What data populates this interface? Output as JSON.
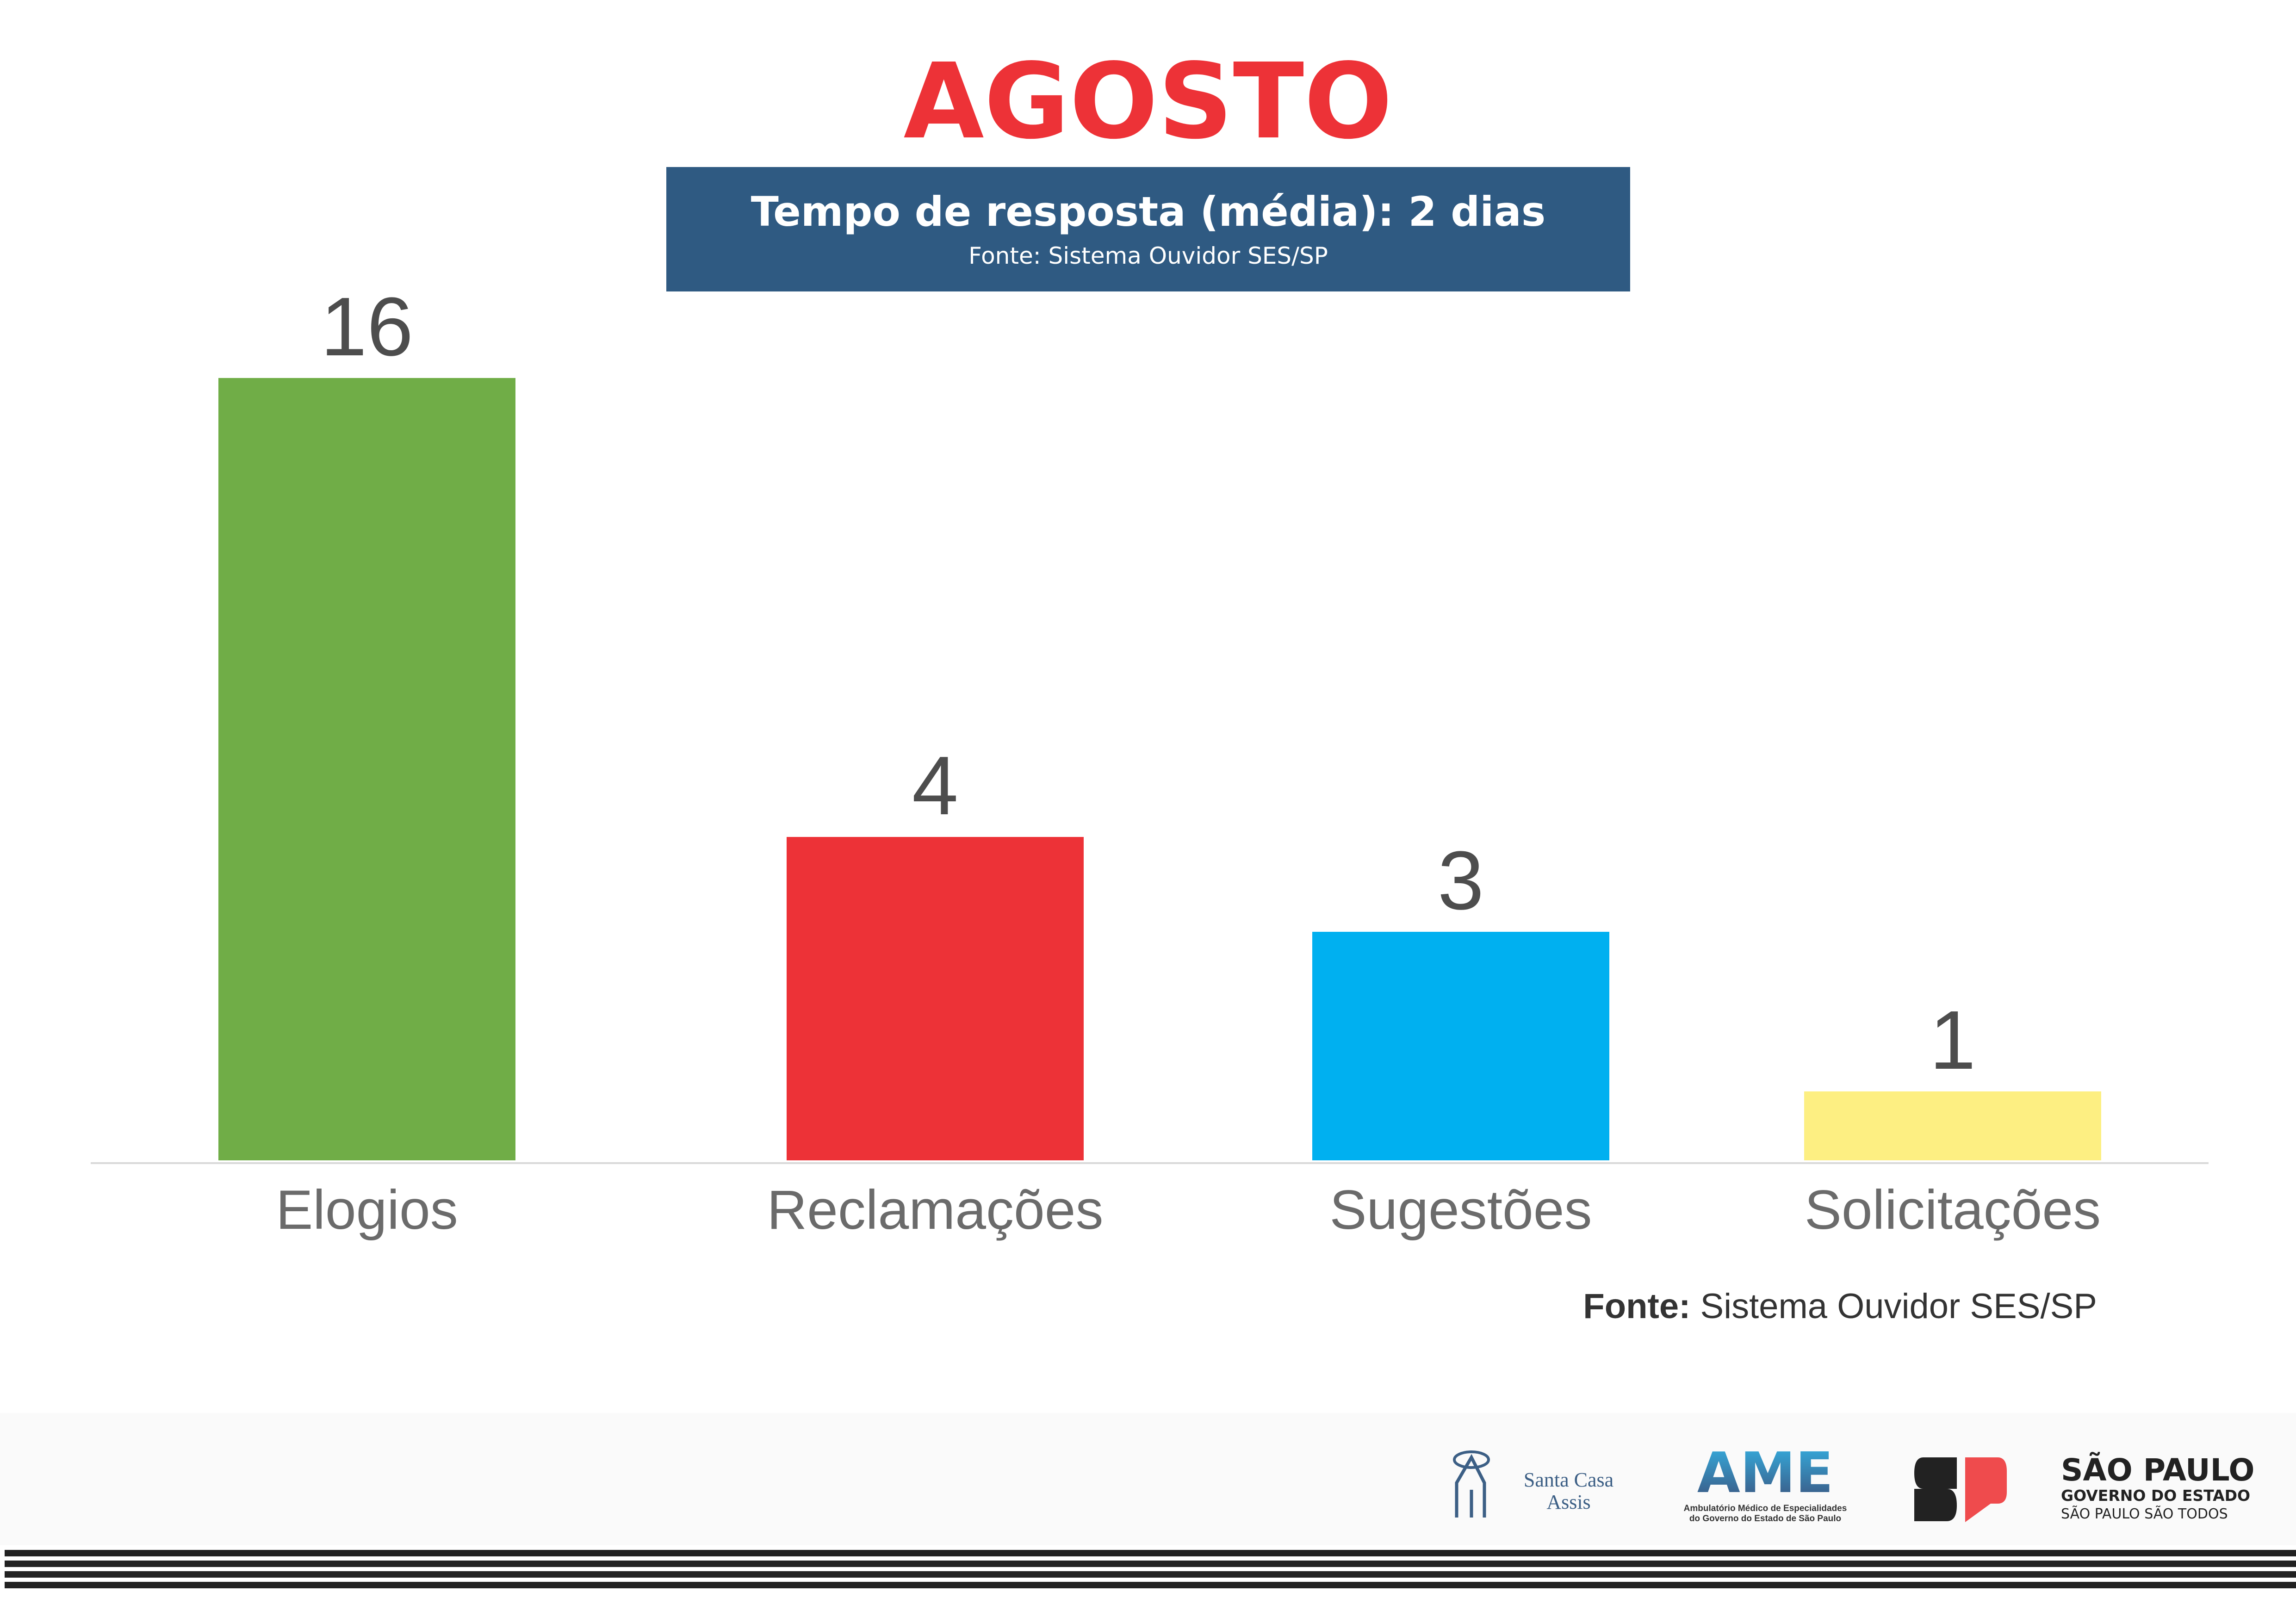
{
  "title": "AGOSTO",
  "info_box": {
    "main": "Tempo de resposta (média): 2 dias",
    "source": "Fonte: Sistema Ouvidor SES/SP"
  },
  "chart_data": {
    "type": "bar",
    "title": "AGOSTO",
    "categories": [
      "Elogios",
      "Reclamações",
      "Sugestões",
      "Solicitações"
    ],
    "values": [
      16,
      4,
      3,
      1
    ],
    "value_labels": [
      "16",
      "4",
      "3",
      "1"
    ],
    "colors": [
      "#70ad47",
      "#ed3237",
      "#00b0f0",
      "#fdef82"
    ],
    "xlabel": "",
    "ylabel": "",
    "grid": false,
    "legend": "none"
  },
  "footer": {
    "source_bold": "Fonte:",
    "source_text": " Sistema Ouvidor SES/SP",
    "logos": {
      "santa_casa": [
        "Santa Casa",
        "Assis"
      ],
      "ame": {
        "name": "AME",
        "line1": "Ambulatório Médico de Especialidades",
        "line2": "do Governo do Estado de São Paulo"
      },
      "sp": {
        "line1": "SÃO PAULO",
        "line2": "GOVERNO DO ESTADO",
        "line3": "SÃO PAULO SÃO TODOS"
      }
    }
  }
}
